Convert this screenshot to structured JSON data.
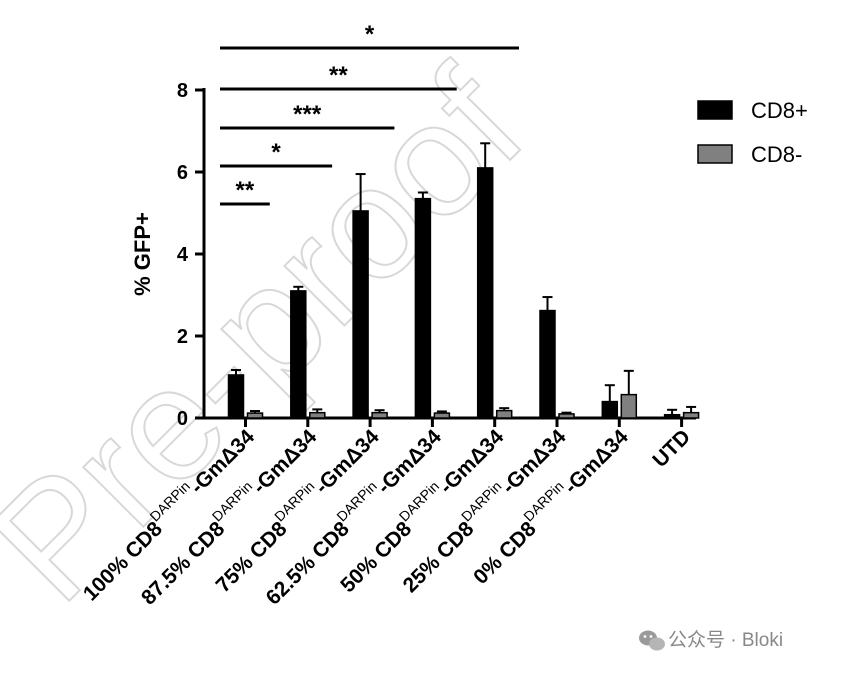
{
  "chart_data": {
    "type": "bar",
    "ylabel": "% GFP+",
    "ylim": [
      0,
      8
    ],
    "yticks": [
      0,
      2,
      4,
      6,
      8
    ],
    "categories": [
      {
        "prefix": "100% CD8",
        "sup": "DARPin",
        "suffix": "-GmΔ34"
      },
      {
        "prefix": "87.5% CD8",
        "sup": "DARPin",
        "suffix": "-GmΔ34"
      },
      {
        "prefix": "75% CD8",
        "sup": "DARPin",
        "suffix": "-GmΔ34"
      },
      {
        "prefix": "62.5% CD8",
        "sup": "DARPin",
        "suffix": "-GmΔ34"
      },
      {
        "prefix": "50% CD8",
        "sup": "DARPin",
        "suffix": "-GmΔ34"
      },
      {
        "prefix": "25% CD8",
        "sup": "DARPin",
        "suffix": "-GmΔ34"
      },
      {
        "prefix": "0% CD8",
        "sup": "DARPin",
        "suffix": "-GmΔ34"
      },
      {
        "prefix": "UTD",
        "sup": "",
        "suffix": ""
      }
    ],
    "series": [
      {
        "name": "CD8+",
        "color": "#000000",
        "values": [
          1.05,
          3.1,
          5.05,
          5.35,
          6.1,
          2.62,
          0.4,
          0.08
        ],
        "errors": [
          0.12,
          0.1,
          0.9,
          0.15,
          0.6,
          0.33,
          0.4,
          0.12
        ]
      },
      {
        "name": "CD8-",
        "color": "#808080",
        "values": [
          0.12,
          0.13,
          0.13,
          0.12,
          0.18,
          0.1,
          0.57,
          0.13
        ],
        "errors": [
          0.05,
          0.08,
          0.06,
          0.04,
          0.06,
          0.03,
          0.58,
          0.14
        ]
      }
    ],
    "significance": [
      {
        "from": 0,
        "to": 1,
        "label": "**"
      },
      {
        "from": 0,
        "to": 2,
        "label": "*"
      },
      {
        "from": 0,
        "to": 3,
        "label": "***"
      },
      {
        "from": 0,
        "to": 4,
        "label": "**"
      },
      {
        "from": 0,
        "to": 5,
        "label": "*"
      }
    ],
    "grid": false,
    "legend_position": "top-right"
  },
  "watermark": "Pre-proof",
  "footer": "公众号 · Bloki"
}
